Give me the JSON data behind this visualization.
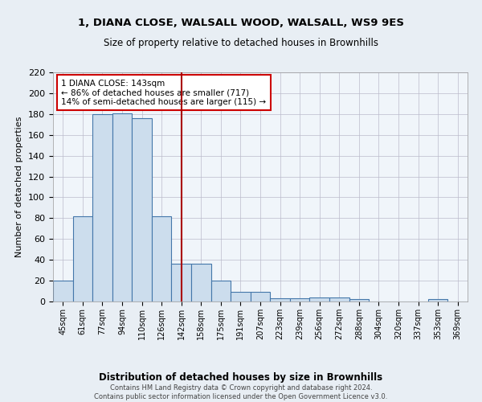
{
  "title1": "1, DIANA CLOSE, WALSALL WOOD, WALSALL, WS9 9ES",
  "title2": "Size of property relative to detached houses in Brownhills",
  "xlabel": "Distribution of detached houses by size in Brownhills",
  "ylabel": "Number of detached properties",
  "categories": [
    "45sqm",
    "61sqm",
    "77sqm",
    "94sqm",
    "110sqm",
    "126sqm",
    "142sqm",
    "158sqm",
    "175sqm",
    "191sqm",
    "207sqm",
    "223sqm",
    "239sqm",
    "256sqm",
    "272sqm",
    "288sqm",
    "304sqm",
    "320sqm",
    "337sqm",
    "353sqm",
    "369sqm"
  ],
  "values": [
    20,
    82,
    180,
    181,
    176,
    82,
    36,
    36,
    20,
    9,
    9,
    3,
    3,
    4,
    4,
    2,
    0,
    0,
    0,
    2,
    0
  ],
  "bar_color": "#ccdded",
  "bar_edge_color": "#4477aa",
  "marker_index": 6,
  "marker_color": "#aa0000",
  "annotation_text": "1 DIANA CLOSE: 143sqm\n← 86% of detached houses are smaller (717)\n14% of semi-detached houses are larger (115) →",
  "annotation_box_color": "#ffffff",
  "annotation_box_edge": "#cc0000",
  "ylim": [
    0,
    220
  ],
  "yticks": [
    0,
    20,
    40,
    60,
    80,
    100,
    120,
    140,
    160,
    180,
    200,
    220
  ],
  "footer": "Contains HM Land Registry data © Crown copyright and database right 2024.\nContains public sector information licensed under the Open Government Licence v3.0.",
  "bg_color": "#e8eef4",
  "plot_bg_color": "#f0f5fa"
}
